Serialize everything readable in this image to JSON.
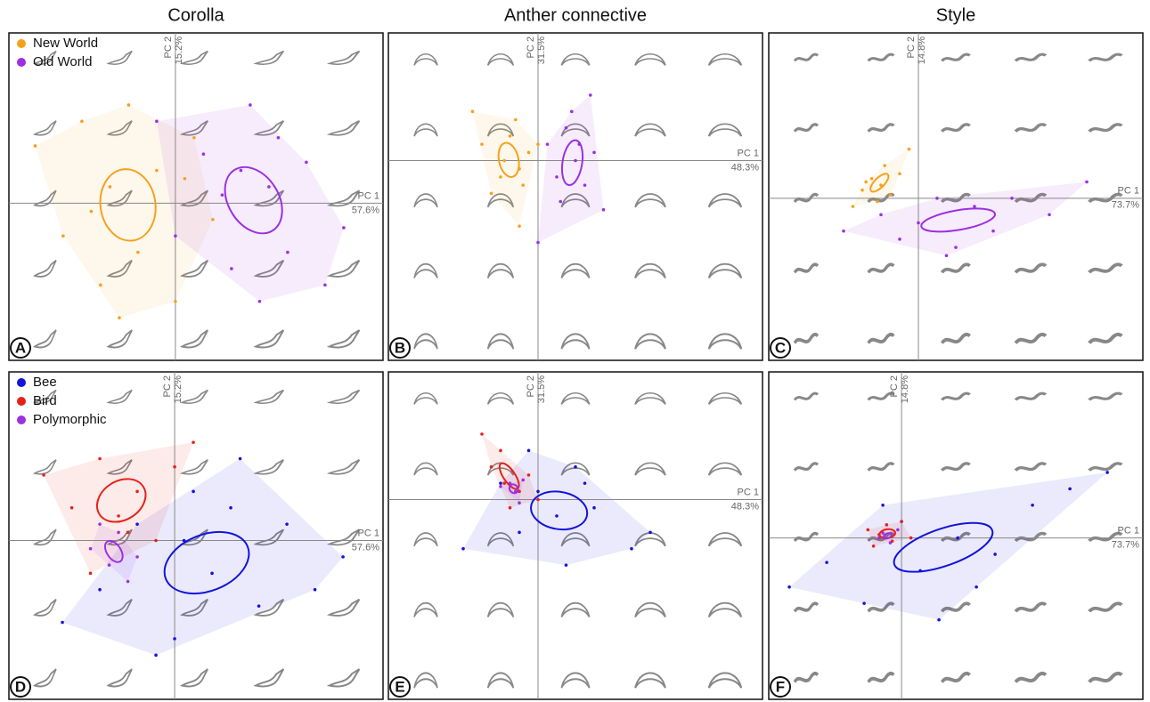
{
  "columns": [
    "Corolla",
    "Anther connective",
    "Style"
  ],
  "chart_data": [
    {
      "type": "scatter",
      "label": "A",
      "x_axis_label": "PC 1",
      "x_variance": "57.6%",
      "y_axis_label": "PC 2",
      "y_variance": "15.2%",
      "xlim": [
        -0.89,
        1.11
      ],
      "ylim": [
        -0.96,
        1.04
      ],
      "series": [
        {
          "name": "New World",
          "color": "#f5a11c",
          "x": [
            -0.75,
            -0.6,
            -0.5,
            -0.4,
            -0.35,
            -0.25,
            -0.2,
            -0.1,
            0,
            0.1,
            0.2,
            -0.45,
            -0.3,
            0.05
          ],
          "y": [
            0.35,
            -0.2,
            0.5,
            -0.5,
            0.1,
            0.6,
            -0.3,
            0.2,
            -0.6,
            0.4,
            -0.1,
            -0.05,
            -0.7,
            0.15
          ]
        },
        {
          "name": "Old World",
          "color": "#9b30e3",
          "x": [
            -0.1,
            0,
            0.15,
            0.3,
            0.4,
            0.5,
            0.6,
            0.7,
            0.8,
            0.9,
            0.25,
            0.55,
            0.45,
            0.35
          ],
          "y": [
            0.5,
            -0.2,
            0.3,
            -0.4,
            0.6,
            0.1,
            -0.3,
            0.25,
            -0.5,
            -0.15,
            0.05,
            0.4,
            -0.6,
            0.2
          ]
        }
      ]
    },
    {
      "type": "scatter",
      "label": "B",
      "x_axis_label": "PC 1",
      "x_variance": "48.3%",
      "y_axis_label": "PC 2",
      "y_variance": "31.5%",
      "xlim": [
        -0.8,
        1.2
      ],
      "ylim": [
        -1.22,
        0.78
      ],
      "series": [
        {
          "color": "#f5a11c",
          "x": [
            -0.3,
            -0.2,
            -0.15,
            -0.1,
            -0.05,
            -0.25,
            -0.12,
            -0.08,
            -0.18,
            0,
            -0.35,
            -0.1
          ],
          "y": [
            0.1,
            -0.1,
            0.15,
            -0.05,
            0.05,
            -0.2,
            0.25,
            -0.15,
            0,
            0.1,
            0.3,
            -0.4
          ]
        },
        {
          "color": "#9b30e3",
          "x": [
            0.05,
            0.1,
            0.15,
            0.2,
            0.25,
            0.3,
            0.12,
            0.18,
            0.22,
            0.35,
            0,
            0.28
          ],
          "y": [
            0.1,
            -0.1,
            0.2,
            0,
            -0.15,
            0.05,
            -0.25,
            0.3,
            0.1,
            -0.3,
            -0.5,
            0.4
          ]
        }
      ]
    },
    {
      "type": "scatter",
      "label": "C",
      "x_axis_label": "PC 1",
      "x_variance": "73.7%",
      "y_axis_label": "PC 2",
      "y_variance": "14.8%",
      "xlim": [
        -0.8,
        1.2
      ],
      "ylim": [
        -0.99,
        1.01
      ],
      "series": [
        {
          "color": "#f5a11c",
          "x": [
            -0.3,
            -0.25,
            -0.2,
            -0.15,
            -0.22,
            -0.1,
            -0.28,
            -0.18,
            -0.05,
            -0.35
          ],
          "y": [
            0.05,
            0.12,
            0.08,
            0.02,
            -0.02,
            0.15,
            0.1,
            0.2,
            0.3,
            -0.05
          ]
        },
        {
          "color": "#9b30e3",
          "x": [
            -0.4,
            -0.2,
            0,
            0.1,
            0.2,
            0.3,
            0.5,
            0.7,
            0.9,
            0.15,
            -0.1,
            0.4
          ],
          "y": [
            -0.2,
            -0.1,
            -0.15,
            0,
            -0.3,
            -0.05,
            0,
            -0.1,
            0.1,
            -0.35,
            -0.25,
            -0.2
          ]
        }
      ]
    },
    {
      "type": "scatter",
      "label": "D",
      "x_axis_label": "PC 1",
      "x_variance": "57.6%",
      "y_axis_label": "PC 2",
      "y_variance": "15.2%",
      "xlim": [
        -0.886,
        1.114
      ],
      "ylim": [
        -0.97,
        1.03
      ],
      "series": [
        {
          "name": "Bee",
          "color": "#1414dc",
          "x": [
            -0.6,
            -0.4,
            -0.2,
            0,
            0.1,
            0.2,
            0.3,
            0.45,
            0.6,
            0.75,
            0.9,
            -0.1,
            0.35,
            0.05
          ],
          "y": [
            -0.5,
            -0.3,
            0.1,
            -0.6,
            0.3,
            -0.2,
            0.2,
            -0.4,
            0.1,
            -0.3,
            -0.1,
            -0.7,
            0.5,
            0
          ]
        },
        {
          "name": "Bird",
          "color": "#e6211a",
          "x": [
            -0.7,
            -0.55,
            -0.4,
            -0.3,
            -0.2,
            -0.1,
            0,
            0.1,
            -0.45,
            -0.25
          ],
          "y": [
            0.4,
            0.2,
            0.5,
            0.15,
            0.3,
            0,
            0.45,
            0.6,
            -0.2,
            0.05
          ]
        },
        {
          "name": "Polymorphic",
          "color": "#9b30e3",
          "x": [
            -0.45,
            -0.35,
            -0.3,
            -0.2,
            -0.25,
            -0.4
          ],
          "y": [
            -0.05,
            -0.15,
            0.05,
            -0.1,
            -0.25,
            0.1
          ]
        }
      ]
    },
    {
      "type": "scatter",
      "label": "E",
      "x_axis_label": "PC 1",
      "x_variance": "48.3%",
      "y_axis_label": "PC 2",
      "y_variance": "31.5%",
      "xlim": [
        -0.8,
        1.2
      ],
      "ylim": [
        -1.22,
        0.78
      ],
      "series": [
        {
          "color": "#1414dc",
          "x": [
            -0.4,
            -0.2,
            -0.1,
            0,
            0.1,
            0.2,
            0.3,
            0.5,
            0.15,
            -0.05,
            0.25,
            0.6
          ],
          "y": [
            -0.3,
            0.1,
            -0.2,
            0.05,
            -0.1,
            0.2,
            -0.05,
            -0.3,
            -0.4,
            0.3,
            0.1,
            -0.2
          ]
        },
        {
          "color": "#e6211a",
          "x": [
            -0.25,
            -0.18,
            -0.1,
            -0.05,
            -0.15,
            -0.2,
            0,
            -0.3
          ],
          "y": [
            0.2,
            0.1,
            0.05,
            0.15,
            -0.05,
            0.3,
            0,
            0.4
          ]
        },
        {
          "color": "#9b30e3",
          "x": [
            -0.15,
            -0.12,
            -0.08,
            -0.1,
            -0.2
          ],
          "y": [
            0.1,
            0.05,
            0.12,
            -0.02,
            0.08
          ]
        }
      ]
    },
    {
      "type": "scatter",
      "label": "F",
      "x_axis_label": "PC 1",
      "x_variance": "73.7%",
      "y_axis_label": "PC 2",
      "y_variance": "14.8%",
      "xlim": [
        -0.71,
        1.29
      ],
      "ylim": [
        -0.986,
        1.014
      ],
      "series": [
        {
          "color": "#1414dc",
          "x": [
            -0.6,
            -0.4,
            -0.2,
            0,
            0.1,
            0.3,
            0.5,
            0.7,
            0.9,
            1.1,
            0.2,
            -0.1,
            0.4
          ],
          "y": [
            -0.3,
            -0.15,
            -0.4,
            0.1,
            -0.2,
            0,
            -0.1,
            0.2,
            0.3,
            0.4,
            -0.5,
            0.2,
            -0.3
          ]
        },
        {
          "color": "#e6211a",
          "x": [
            -0.18,
            -0.12,
            -0.08,
            -0.05,
            -0.15,
            0,
            0.05
          ],
          "y": [
            0.05,
            0.02,
            0.08,
            -0.02,
            -0.05,
            0.1,
            0
          ]
        },
        {
          "color": "#9b30e3",
          "x": [
            -0.1,
            -0.06,
            -0.12,
            -0.02
          ],
          "y": [
            0.03,
            -0.03,
            0,
            0.05
          ]
        }
      ]
    }
  ]
}
